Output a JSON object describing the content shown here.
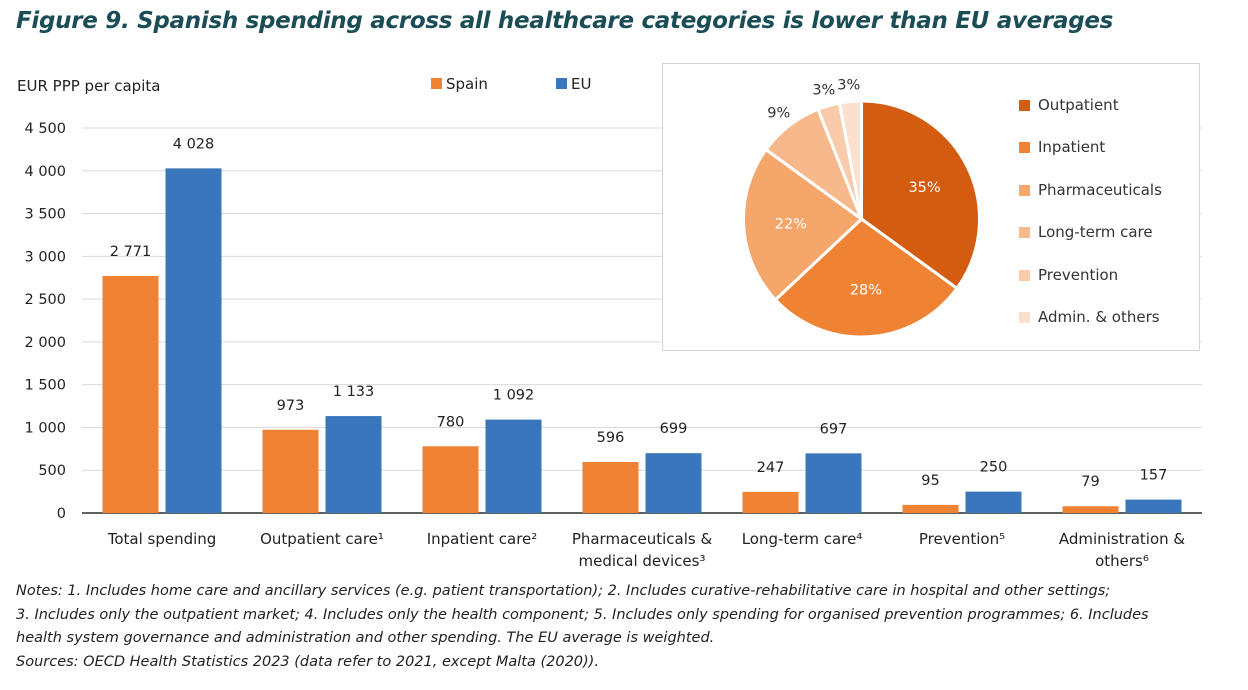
{
  "title": "Figure 9. Spanish spending across all healthcare categories is lower than EU averages",
  "chart_data": [
    {
      "type": "bar",
      "ylabel": "EUR PPP per capita",
      "ylim": [
        0,
        4500
      ],
      "yticks": [
        0,
        500,
        1000,
        1500,
        2000,
        2500,
        3000,
        3500,
        4000,
        4500
      ],
      "ytick_labels": [
        "0",
        "500",
        "1 000",
        "1 500",
        "2 000",
        "2 500",
        "3 000",
        "3 500",
        "4 000",
        "4 500"
      ],
      "categories": [
        [
          "Total spending"
        ],
        [
          "Outpatient care¹"
        ],
        [
          "Inpatient care²"
        ],
        [
          "Pharmaceuticals &",
          "medical devices³"
        ],
        [
          "Long-term care⁴"
        ],
        [
          "Prevention⁵"
        ],
        [
          "Administration &",
          "others⁶"
        ]
      ],
      "series": [
        {
          "name": "Spain",
          "color": "#ef8333",
          "values": [
            2771,
            973,
            780,
            596,
            247,
            95,
            79
          ],
          "labels": [
            "2 771",
            "973",
            "780",
            "596",
            "247",
            "95",
            "79"
          ]
        },
        {
          "name": "EU",
          "color": "#3a76bb",
          "values": [
            4028,
            1133,
            1092,
            699,
            697,
            250,
            157
          ],
          "labels": [
            "4 028",
            "1 133",
            "1 092",
            "699",
            "697",
            "250",
            "157"
          ]
        }
      ],
      "legend": "top-center",
      "grid": true
    },
    {
      "type": "pie",
      "categories": [
        "Outpatient",
        "Inpatient",
        "Pharmaceuticals",
        "Long-term care",
        "Prevention",
        "Admin. & others"
      ],
      "values": [
        35,
        28,
        22,
        9,
        3,
        3
      ],
      "labels": [
        "35%",
        "28%",
        "22%",
        "9%",
        "3%",
        "3%"
      ],
      "colors": [
        "#d45c10",
        "#ef8333",
        "#f5a66b",
        "#f7b98c",
        "#f9cbaa",
        "#fbe0ce"
      ],
      "legend": "right"
    }
  ],
  "notes": [
    "Notes: 1. Includes home care and ancillary services (e.g. patient transportation); 2. Includes curative-rehabilitative care in hospital and other settings;",
    "3. Includes only the outpatient market; 4. Includes only the health component; 5. Includes only spending for organised prevention programmes; 6. Includes",
    "health system governance and administration and other spending. The EU average is weighted.",
    "Sources: OECD Health Statistics 2023 (data refer to 2021, except Malta (2020))."
  ]
}
